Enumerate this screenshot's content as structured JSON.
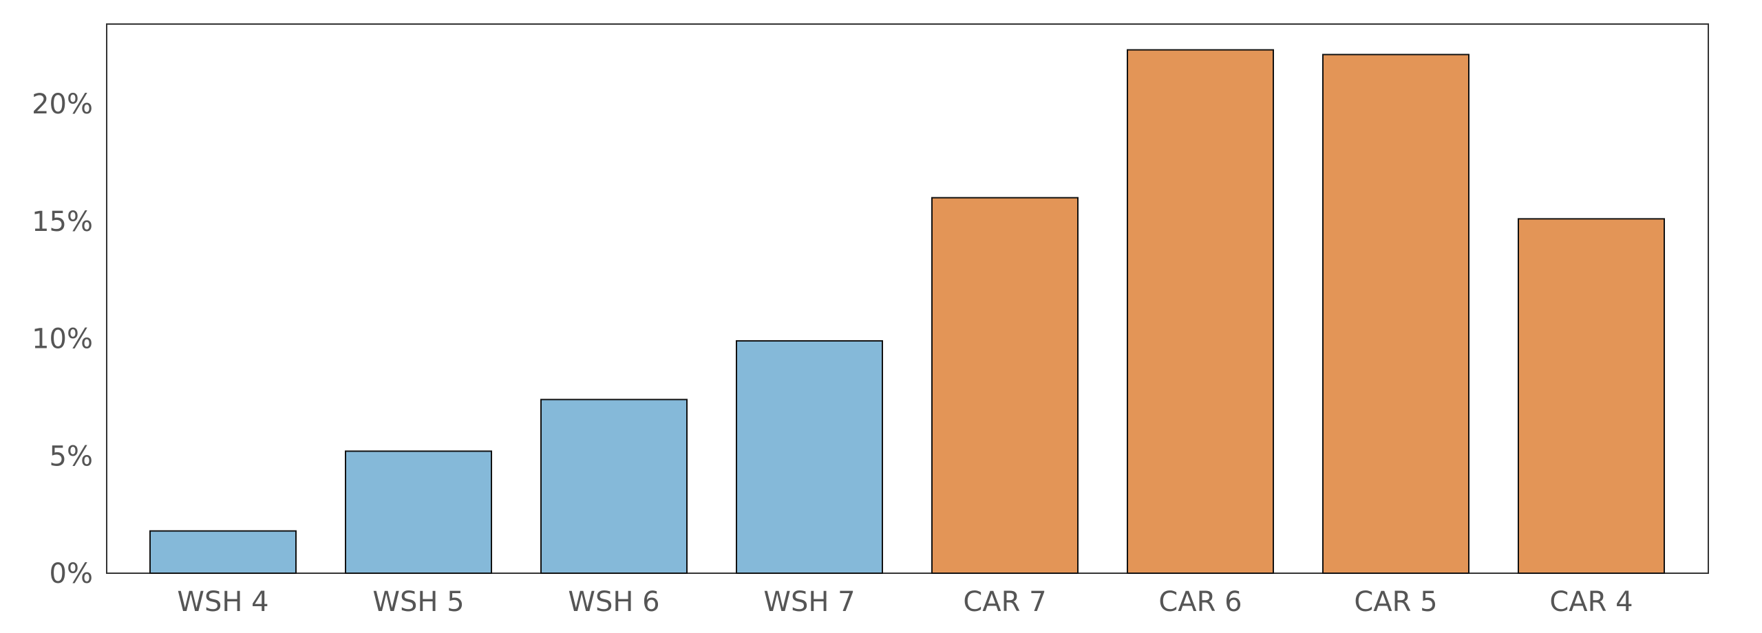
{
  "chart_data": {
    "type": "bar",
    "title": "",
    "xlabel": "",
    "ylabel": "",
    "categories": [
      "WSH 4",
      "WSH 5",
      "WSH 6",
      "WSH 7",
      "CAR 7",
      "CAR 6",
      "CAR 5",
      "CAR 4"
    ],
    "values": [
      1.8,
      5.2,
      7.4,
      9.9,
      16.0,
      22.3,
      22.1,
      15.1
    ],
    "bar_colors": [
      "#85b9d9",
      "#85b9d9",
      "#85b9d9",
      "#85b9d9",
      "#e39557",
      "#e39557",
      "#e39557",
      "#e39557"
    ],
    "y_ticks": [
      0,
      5,
      10,
      15,
      20
    ],
    "y_tick_labels": [
      "0%",
      "5%",
      "10%",
      "15%",
      "20%"
    ],
    "ylim": [
      0,
      23.4
    ],
    "unit": "%",
    "grid": false,
    "legend": false
  }
}
